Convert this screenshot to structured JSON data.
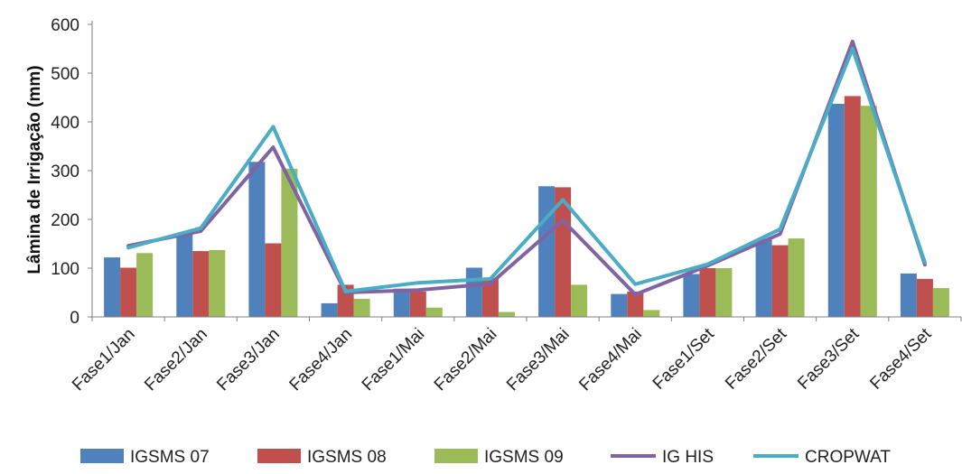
{
  "chart_data": {
    "type": "bar",
    "title": "",
    "xlabel": "",
    "ylabel": "Lâmina de Irrigação (mm)",
    "ylim": [
      0,
      600
    ],
    "yticks": [
      0,
      100,
      200,
      300,
      400,
      500,
      600
    ],
    "grid": false,
    "legend_position": "bottom",
    "categories": [
      "Fase1/Jan",
      "Fase2/Jan",
      "Fase3/Jan",
      "Fase4/Jan",
      "Fase1/Mai",
      "Fase2/Mai",
      "Fase3/Mai",
      "Fase4/Mai",
      "Fase1/Set",
      "Fase2/Set",
      "Fase3/Set",
      "Fase4/Set"
    ],
    "series": [
      {
        "name": "IGSMS 07",
        "kind": "bar",
        "color": "#4F81BD",
        "values": [
          122,
          172,
          318,
          28,
          58,
          101,
          268,
          47,
          88,
          160,
          437,
          89
        ]
      },
      {
        "name": "IGSMS 08",
        "kind": "bar",
        "color": "#C0504D",
        "values": [
          101,
          135,
          151,
          66,
          52,
          80,
          266,
          52,
          100,
          147,
          453,
          78
        ]
      },
      {
        "name": "IGSMS 09",
        "kind": "bar",
        "color": "#9BBB59",
        "values": [
          131,
          137,
          304,
          37,
          19,
          10,
          66,
          14,
          100,
          161,
          433,
          59
        ]
      },
      {
        "name": "IG HIS",
        "kind": "line",
        "color": "#8064A2",
        "values": [
          146,
          176,
          348,
          50,
          55,
          68,
          198,
          46,
          105,
          170,
          565,
          107
        ]
      },
      {
        "name": "CROPWAT",
        "kind": "line",
        "color": "#4BACC6",
        "values": [
          142,
          182,
          390,
          52,
          70,
          78,
          240,
          67,
          108,
          180,
          550,
          112
        ]
      }
    ]
  }
}
